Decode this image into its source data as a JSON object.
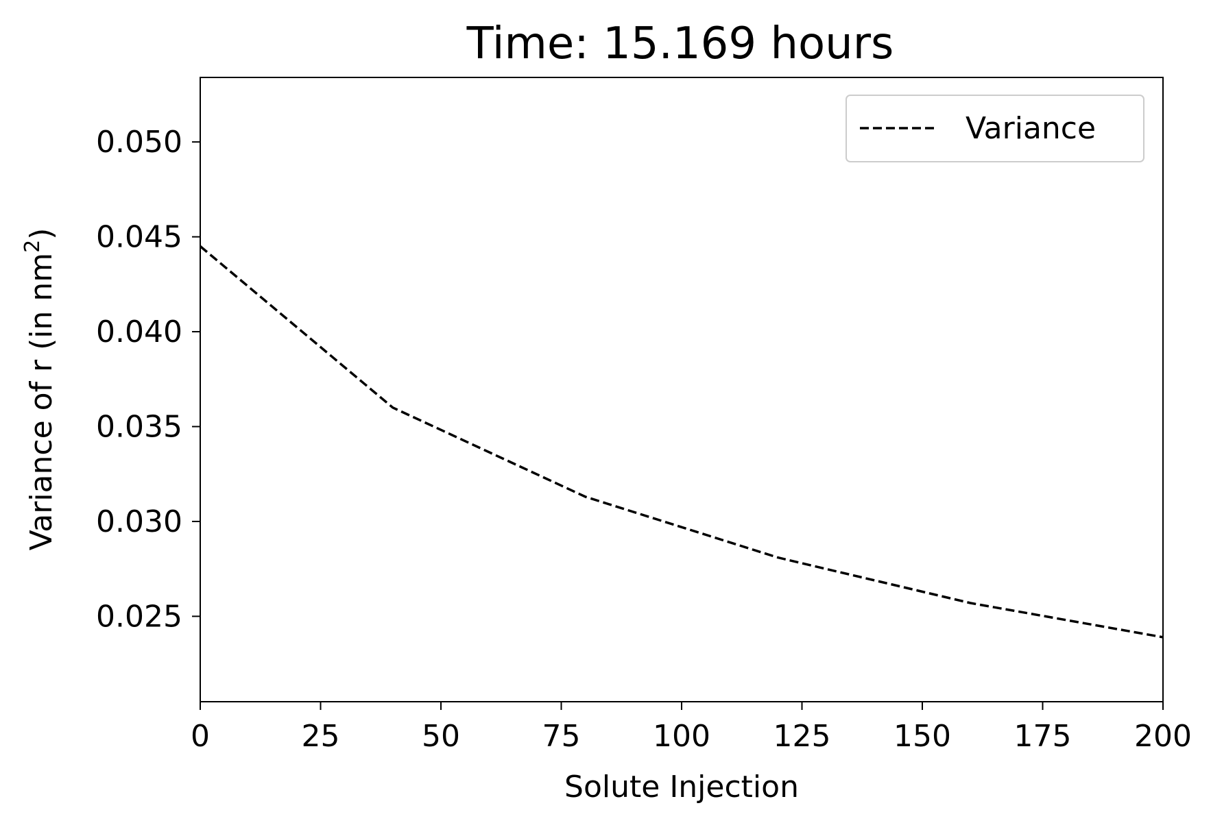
{
  "chart_data": {
    "type": "line",
    "title": "Time: 15.169 hours",
    "xlabel": "Solute Injection",
    "ylabel_main": "Variance of r (in nm",
    "ylabel_sup": "2",
    "ylabel_close": ")",
    "xlim": [
      0,
      200
    ],
    "ylim": [
      0.0205,
      0.0534
    ],
    "x_ticks": [
      0,
      25,
      50,
      75,
      100,
      125,
      150,
      175,
      200
    ],
    "x_tick_labels": [
      "0",
      "25",
      "50",
      "75",
      "100",
      "125",
      "150",
      "175",
      "200"
    ],
    "y_ticks": [
      0.025,
      0.03,
      0.035,
      0.04,
      0.045,
      0.05
    ],
    "y_tick_labels": [
      "0.025",
      "0.030",
      "0.035",
      "0.040",
      "0.045",
      "0.050"
    ],
    "grid": false,
    "legend_position": "top-right",
    "series": [
      {
        "name": "Variance",
        "line_style": "dashed",
        "color": "#000000",
        "x": [
          0,
          40,
          80,
          120,
          160,
          200
        ],
        "y": [
          0.0445,
          0.036,
          0.0313,
          0.0281,
          0.0257,
          0.0239
        ]
      }
    ]
  }
}
